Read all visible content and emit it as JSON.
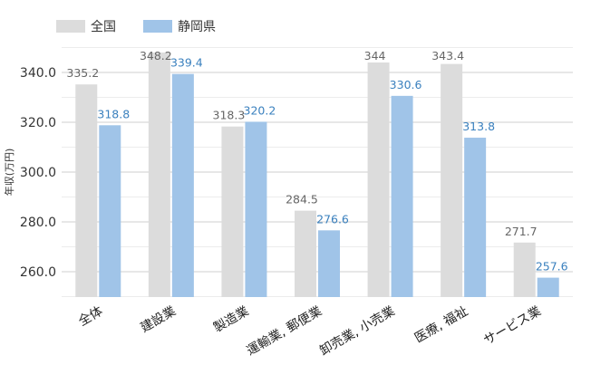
{
  "chart_data": {
    "type": "bar",
    "categories": [
      "全体",
      "建設業",
      "製造業",
      "運輸業, 郵便業",
      "卸売業, 小売業",
      "医療, 福祉",
      "サービス業"
    ],
    "series": [
      {
        "name": "全国",
        "values": [
          335.2,
          348.2,
          318.3,
          284.5,
          344,
          343.4,
          271.7
        ],
        "labels": [
          "335.2",
          "348.2",
          "318.3",
          "284.5",
          "344",
          "343.4",
          "271.7"
        ],
        "color": "#dcdcdc",
        "label_color": "#666666"
      },
      {
        "name": "静岡県",
        "values": [
          318.8,
          339.4,
          320.2,
          276.6,
          330.6,
          313.8,
          257.6
        ],
        "labels": [
          "318.8",
          "339.4",
          "320.2",
          "276.6",
          "330.6",
          "313.8",
          "257.6"
        ],
        "color": "#a0c4e8",
        "label_color": "#3a80be"
      }
    ],
    "ylabel": "年収(万円)",
    "xlabel": "",
    "ylim": [
      250,
      350
    ],
    "yticks": [
      260,
      280,
      300,
      320,
      340
    ],
    "ytick_labels": [
      "260.0",
      "280.0",
      "300.0",
      "320.0",
      "340.0"
    ],
    "grid": true,
    "legend": "top-left"
  }
}
